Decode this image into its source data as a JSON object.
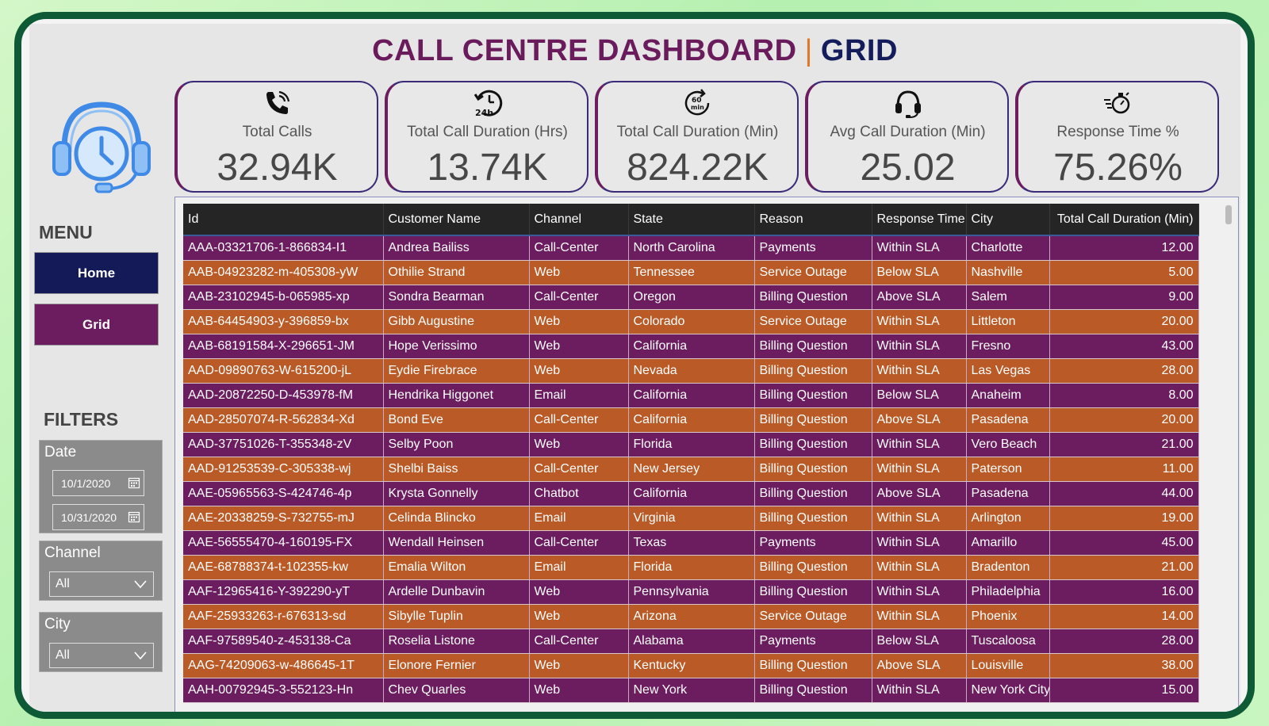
{
  "title": {
    "main": "CALL CENTRE DASHBOARD",
    "separator": "|",
    "sub": "GRID"
  },
  "sidebar": {
    "logo_icon": "headset-clock-icon",
    "menu_label": "MENU",
    "menu": {
      "home_label": "Home",
      "grid_label": "Grid"
    },
    "filters_label": "FILTERS",
    "date_filter": {
      "title": "Date",
      "start": "10/1/2020",
      "end": "10/31/2020"
    },
    "channel_filter": {
      "title": "Channel",
      "value": "All"
    },
    "city_filter": {
      "title": "City",
      "value": "All"
    }
  },
  "kpis": [
    {
      "icon": "phone-ringing-icon",
      "label": "Total Calls",
      "value": "32.94K"
    },
    {
      "icon": "24h-clock-icon",
      "label": "Total Call Duration (Hrs)",
      "value": "13.74K"
    },
    {
      "icon": "60-min-icon",
      "label": "Total Call Duration (Min)",
      "value": "824.22K"
    },
    {
      "icon": "headphones-icon",
      "label": "Avg Call Duration (Min)",
      "value": "25.02"
    },
    {
      "icon": "stopwatch-icon",
      "label": "Response Time %",
      "value": "75.26%"
    }
  ],
  "colors": {
    "purple_row": "#6b1d5f",
    "orange_row": "#ba5a26",
    "header": "#252525",
    "title_main": "#6a1b5c",
    "title_sub": "#141c5c",
    "accent": "#e0782a"
  },
  "grid": {
    "columns": [
      "Id",
      "Customer Name",
      "Channel",
      "State",
      "Reason",
      "Response Time",
      "City",
      "Total Call Duration (Min)"
    ],
    "rows": [
      [
        "AAA-03321706-1-866834-I1",
        "Andrea Bailiss",
        "Call-Center",
        "North Carolina",
        "Payments",
        "Within SLA",
        "Charlotte",
        "12.00"
      ],
      [
        "AAB-04923282-m-405308-yW",
        "Othilie Strand",
        "Web",
        "Tennessee",
        "Service Outage",
        "Below SLA",
        "Nashville",
        "5.00"
      ],
      [
        "AAB-23102945-b-065985-xp",
        "Sondra Bearman",
        "Call-Center",
        "Oregon",
        "Billing Question",
        "Above SLA",
        "Salem",
        "9.00"
      ],
      [
        "AAB-64454903-y-396859-bx",
        "Gibb Augustine",
        "Web",
        "Colorado",
        "Service Outage",
        "Within SLA",
        "Littleton",
        "20.00"
      ],
      [
        "AAB-68191584-X-296651-JM",
        "Hope Verissimo",
        "Web",
        "California",
        "Billing Question",
        "Within SLA",
        "Fresno",
        "43.00"
      ],
      [
        "AAD-09890763-W-615200-jL",
        "Eydie Firebrace",
        "Web",
        "Nevada",
        "Billing Question",
        "Within SLA",
        "Las Vegas",
        "28.00"
      ],
      [
        "AAD-20872250-D-453978-fM",
        "Hendrika Higgonet",
        "Email",
        "California",
        "Billing Question",
        "Below SLA",
        "Anaheim",
        "8.00"
      ],
      [
        "AAD-28507074-R-562834-Xd",
        "Bond Eve",
        "Call-Center",
        "California",
        "Billing Question",
        "Above SLA",
        "Pasadena",
        "20.00"
      ],
      [
        "AAD-37751026-T-355348-zV",
        "Selby Poon",
        "Web",
        "Florida",
        "Billing Question",
        "Within SLA",
        "Vero Beach",
        "21.00"
      ],
      [
        "AAD-91253539-C-305338-wj",
        "Shelbi Baiss",
        "Call-Center",
        "New Jersey",
        "Billing Question",
        "Within SLA",
        "Paterson",
        "11.00"
      ],
      [
        "AAE-05965563-S-424746-4p",
        "Krysta Gonnelly",
        "Chatbot",
        "California",
        "Billing Question",
        "Above SLA",
        "Pasadena",
        "44.00"
      ],
      [
        "AAE-20338259-S-732755-mJ",
        "Celinda Blincko",
        "Email",
        "Virginia",
        "Billing Question",
        "Within SLA",
        "Arlington",
        "19.00"
      ],
      [
        "AAE-56555470-4-160195-FX",
        "Wendall Heinsen",
        "Call-Center",
        "Texas",
        "Payments",
        "Within SLA",
        "Amarillo",
        "45.00"
      ],
      [
        "AAE-68788374-t-102355-kw",
        "Emalia Wilton",
        "Email",
        "Florida",
        "Billing Question",
        "Within SLA",
        "Bradenton",
        "21.00"
      ],
      [
        "AAF-12965416-Y-392290-yT",
        "Ardelle Dunbavin",
        "Web",
        "Pennsylvania",
        "Billing Question",
        "Within SLA",
        "Philadelphia",
        "16.00"
      ],
      [
        "AAF-25933263-r-676313-sd",
        "Sibylle Tuplin",
        "Web",
        "Arizona",
        "Service Outage",
        "Within SLA",
        "Phoenix",
        "14.00"
      ],
      [
        "AAF-97589540-z-453138-Ca",
        "Roselia Listone",
        "Call-Center",
        "Alabama",
        "Payments",
        "Below SLA",
        "Tuscaloosa",
        "28.00"
      ],
      [
        "AAG-74209063-w-486645-1T",
        "Elonore Fernier",
        "Web",
        "Kentucky",
        "Billing Question",
        "Above SLA",
        "Louisville",
        "38.00"
      ],
      [
        "AAH-00792945-3-552123-Hn",
        "Chev Quarles",
        "Web",
        "New York",
        "Billing Question",
        "Within SLA",
        "New York City",
        "15.00"
      ]
    ]
  }
}
